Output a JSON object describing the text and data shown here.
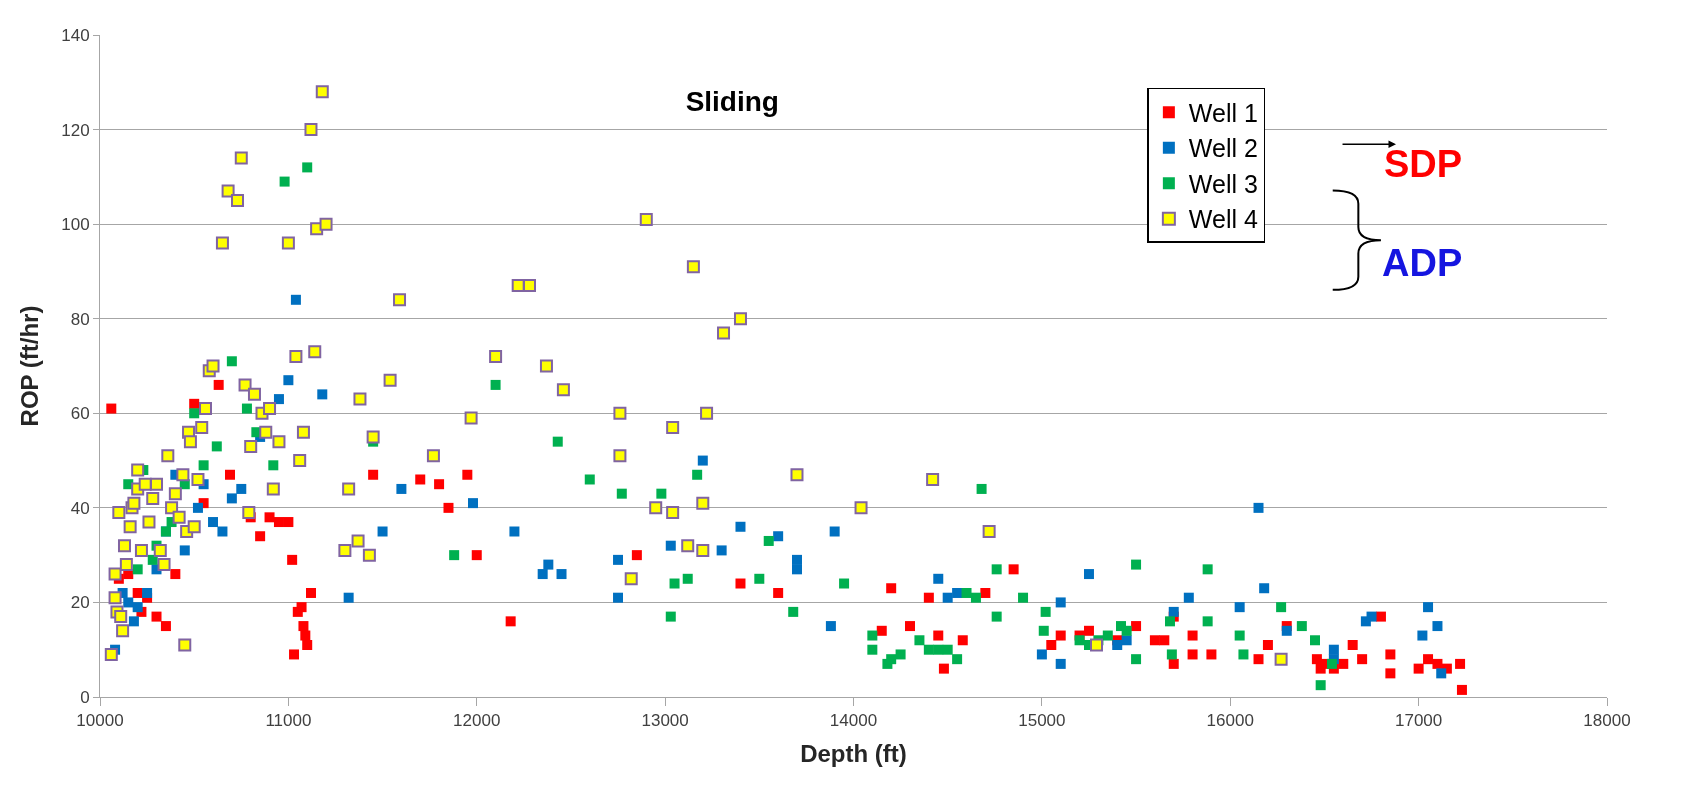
{
  "chart_data": {
    "type": "scatter",
    "title": "Sliding",
    "xlabel": "Depth (ft)",
    "ylabel": "ROP (ft/hr)",
    "xlim": [
      10000,
      18000
    ],
    "xticks": [
      10000,
      11000,
      12000,
      13000,
      14000,
      15000,
      16000,
      17000,
      18000
    ],
    "ylim": [
      0,
      140
    ],
    "yticks": [
      0,
      20,
      40,
      60,
      80,
      100,
      120,
      140
    ],
    "grid": "y",
    "legend": "top right",
    "marker": "square",
    "annotations": [
      "SDP",
      "ADP"
    ],
    "series": [
      {
        "name": "Well 1",
        "color": "#ff0000",
        "x": [
          10060,
          10100,
          10150,
          10200,
          10220,
          10250,
          10300,
          10350,
          10400,
          10500,
          10550,
          10630,
          10690,
          10800,
          10850,
          10900,
          10950,
          11000,
          11020,
          11030,
          11050,
          11070,
          11080,
          11090,
          11100,
          11120,
          11450,
          11700,
          11800,
          11850,
          11950,
          12000,
          12180,
          12850,
          13400,
          13600,
          14150,
          14200,
          14300,
          14400,
          14450,
          14480,
          14580,
          14700,
          14850,
          15050,
          15100,
          15200,
          15250,
          15300,
          15400,
          15500,
          15600,
          15650,
          15700,
          15700,
          15800,
          15800,
          15900,
          16150,
          16200,
          16300,
          16460,
          16480,
          16500,
          16550,
          16600,
          16650,
          16700,
          16800,
          16850,
          16850,
          17000,
          17050,
          17100,
          17150,
          17220,
          17230
        ],
        "values": [
          61,
          25,
          26,
          22,
          18,
          21,
          17,
          15,
          26,
          62,
          41,
          66,
          47,
          38,
          34,
          38,
          37,
          37,
          29,
          9,
          18,
          19,
          15,
          13,
          11,
          22,
          47,
          46,
          45,
          40,
          47,
          30,
          16,
          30,
          24,
          22,
          14,
          23,
          15,
          21,
          13,
          6,
          12,
          22,
          27,
          11,
          13,
          13,
          14,
          null,
          12,
          15,
          12,
          12,
          17,
          7,
          9,
          13,
          9,
          8,
          11,
          15,
          8,
          6,
          7,
          6,
          7,
          11,
          8,
          17,
          9,
          5,
          6,
          8,
          7,
          6,
          7,
          1.5
        ]
      },
      {
        "name": "Well 2",
        "color": "#0070c0",
        "x": [
          10080,
          10120,
          10150,
          10180,
          10200,
          10250,
          10300,
          10350,
          10400,
          10450,
          10520,
          10550,
          10600,
          10650,
          10700,
          10750,
          10850,
          10950,
          11000,
          11040,
          11180,
          11320,
          11500,
          11600,
          11980,
          12200,
          12350,
          12380,
          12450,
          12750,
          12750,
          13030,
          13200,
          13300,
          13400,
          13600,
          13700,
          13700,
          13880,
          13900,
          14450,
          14500,
          14550,
          15000,
          15100,
          15100,
          15250,
          15400,
          15450,
          15700,
          15780,
          16050,
          16150,
          16180,
          16300,
          16550,
          16550,
          16720,
          16750,
          17050,
          17100,
          17120,
          17020
        ],
        "values": [
          10,
          22,
          20,
          16,
          19,
          22,
          27,
          35,
          47,
          31,
          40,
          45,
          37,
          35,
          42,
          44,
          55,
          63,
          67,
          84,
          64,
          21,
          35,
          44,
          41,
          35,
          26,
          28,
          26,
          21,
          29,
          32,
          50,
          31,
          36,
          34,
          27,
          29,
          15,
          35,
          25,
          21,
          22,
          9,
          7,
          20,
          26,
          11,
          12,
          18,
          21,
          19,
          40,
          23,
          14,
          8,
          10,
          16,
          17,
          19,
          15,
          5,
          13
        ]
      },
      {
        "name": "Well 3",
        "color": "#00b050",
        "x": [
          10150,
          10200,
          10230,
          10280,
          10300,
          10350,
          10380,
          10450,
          10500,
          10550,
          10620,
          10700,
          10780,
          10830,
          10920,
          10980,
          11100,
          11450,
          11880,
          12100,
          12430,
          12600,
          12770,
          12980,
          13030,
          13050,
          13120,
          13170,
          13500,
          13550,
          13680,
          13950,
          14100,
          14100,
          14180,
          14200,
          14250,
          14350,
          14400,
          14450,
          14500,
          14550,
          14600,
          14650,
          14680,
          14760,
          14760,
          14900,
          15010,
          15020,
          15200,
          15250,
          15300,
          15350,
          15420,
          15450,
          15500,
          15500,
          15680,
          15690,
          15880,
          15880,
          16050,
          16070,
          16270,
          16380,
          16450,
          16480,
          16540
        ],
        "values": [
          45,
          27,
          48,
          29,
          32,
          35,
          37,
          45,
          60,
          49,
          53,
          71,
          61,
          56,
          49,
          109,
          112,
          54,
          30,
          66,
          54,
          46,
          43,
          43,
          17,
          24,
          25,
          47,
          25,
          33,
          18,
          24,
          13,
          10,
          7,
          8,
          9,
          12,
          10,
          10,
          10,
          8,
          22,
          21,
          44,
          27,
          17,
          21,
          14,
          18,
          12,
          11,
          12,
          13,
          15,
          14,
          28,
          8,
          16,
          9,
          16,
          27,
          13,
          9,
          19,
          15,
          12,
          2.5,
          7
        ]
      },
      {
        "name": "Well 4",
        "color": "#ffff00",
        "x": [
          10060,
          10080,
          10080,
          10090,
          10100,
          10110,
          10120,
          10130,
          10140,
          10160,
          10170,
          10180,
          10200,
          10200,
          10220,
          10240,
          10260,
          10280,
          10300,
          10320,
          10340,
          10360,
          10380,
          10400,
          10420,
          10440,
          10460,
          10470,
          10480,
          10500,
          10520,
          10540,
          10560,
          10580,
          10600,
          10450,
          10650,
          10680,
          10730,
          10750,
          10770,
          10790,
          10800,
          10820,
          10860,
          10880,
          10900,
          10920,
          10950,
          11000,
          11040,
          11060,
          11080,
          11120,
          11140,
          11150,
          11180,
          11200,
          11300,
          11320,
          11370,
          11380,
          11430,
          11450,
          11540,
          11590,
          11770,
          11970,
          12100,
          12220,
          12280,
          12370,
          12460,
          12760,
          12760,
          12820,
          12900,
          12950,
          13040,
          13040,
          13120,
          13150,
          13200,
          13220,
          13200,
          13310,
          13400,
          13700,
          14040,
          14420,
          14720,
          15290,
          16270
        ],
        "values": [
          9,
          26,
          21,
          18,
          39,
          17,
          14,
          32,
          28,
          36,
          40,
          41,
          44,
          48,
          31,
          45,
          37,
          42,
          45,
          31,
          28,
          51,
          40,
          43,
          38,
          47,
          35,
          56,
          54,
          36,
          46,
          57,
          61,
          69,
          70,
          11,
          96,
          107,
          105,
          114,
          66,
          39,
          53,
          64,
          60,
          56,
          61,
          44,
          54,
          96,
          72,
          50,
          56,
          120,
          73,
          99,
          128,
          100,
          31,
          44,
          33,
          63,
          30,
          55,
          67,
          84,
          51,
          59,
          72,
          87,
          87,
          70,
          65,
          60,
          51,
          25,
          101,
          40,
          39,
          57,
          32,
          91,
          31,
          60,
          41,
          77,
          80,
          47,
          40,
          46,
          35,
          11,
          8
        ]
      }
    ]
  }
}
